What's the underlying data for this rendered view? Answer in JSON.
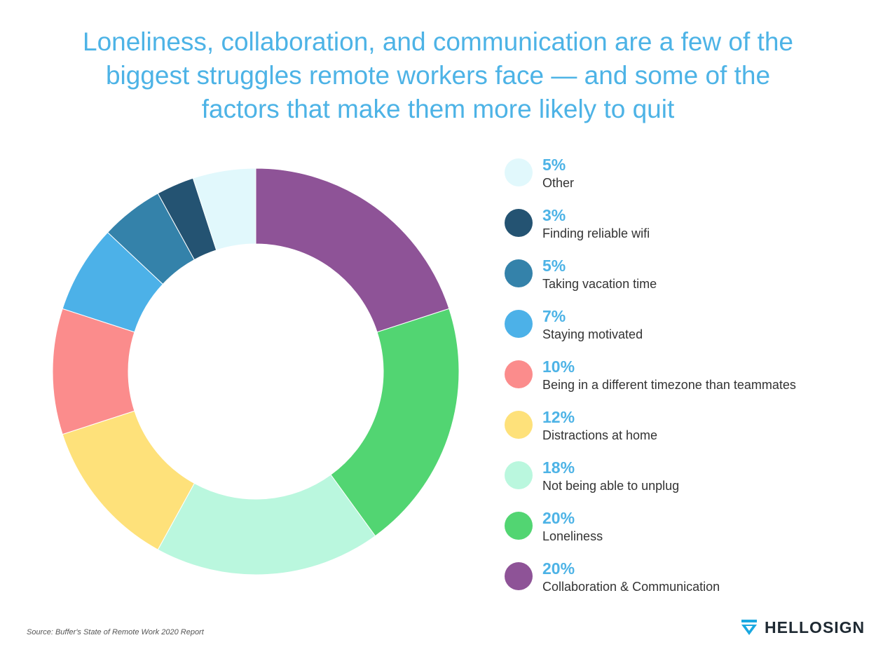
{
  "header": {
    "title_lines": [
      "Loneliness, collaboration, and communication are a few of the",
      "biggest struggles remote workers face —  and some of the",
      "factors that make them more likely to quit"
    ]
  },
  "chart_data": {
    "type": "pie",
    "donut": true,
    "title": "Loneliness, collaboration, and communication are a few of the biggest struggles remote workers face —  and some of the factors that make them more likely to quit",
    "legend_position": "right",
    "unit": "%",
    "slices": [
      {
        "label": "Collaboration & Communication",
        "value": 20,
        "value_label": "20%",
        "color": "#8e5397"
      },
      {
        "label": "Loneliness",
        "value": 20,
        "value_label": "20%",
        "color": "#52d572"
      },
      {
        "label": "Not being able to unplug",
        "value": 18,
        "value_label": "18%",
        "color": "#baf7de"
      },
      {
        "label": "Distractions at home",
        "value": 12,
        "value_label": "12%",
        "color": "#fee17a"
      },
      {
        "label": "Being in a different timezone than teammates",
        "value": 10,
        "value_label": "10%",
        "color": "#fb8c8c"
      },
      {
        "label": "Staying motivated",
        "value": 7,
        "value_label": "7%",
        "color": "#4cb1e8"
      },
      {
        "label": "Taking vacation time",
        "value": 5,
        "value_label": "5%",
        "color": "#3482aa"
      },
      {
        "label": "Finding reliable wifi",
        "value": 3,
        "value_label": "3%",
        "color": "#245372"
      },
      {
        "label": "Other",
        "value": 5,
        "value_label": "5%",
        "color": "#e1f8fc"
      }
    ]
  },
  "footer": {
    "source": "Source: Buffer's State of Remote Work 2020 Report",
    "brand": "HELLOSIGN",
    "brand_icon": "hellosign-logo-icon"
  }
}
